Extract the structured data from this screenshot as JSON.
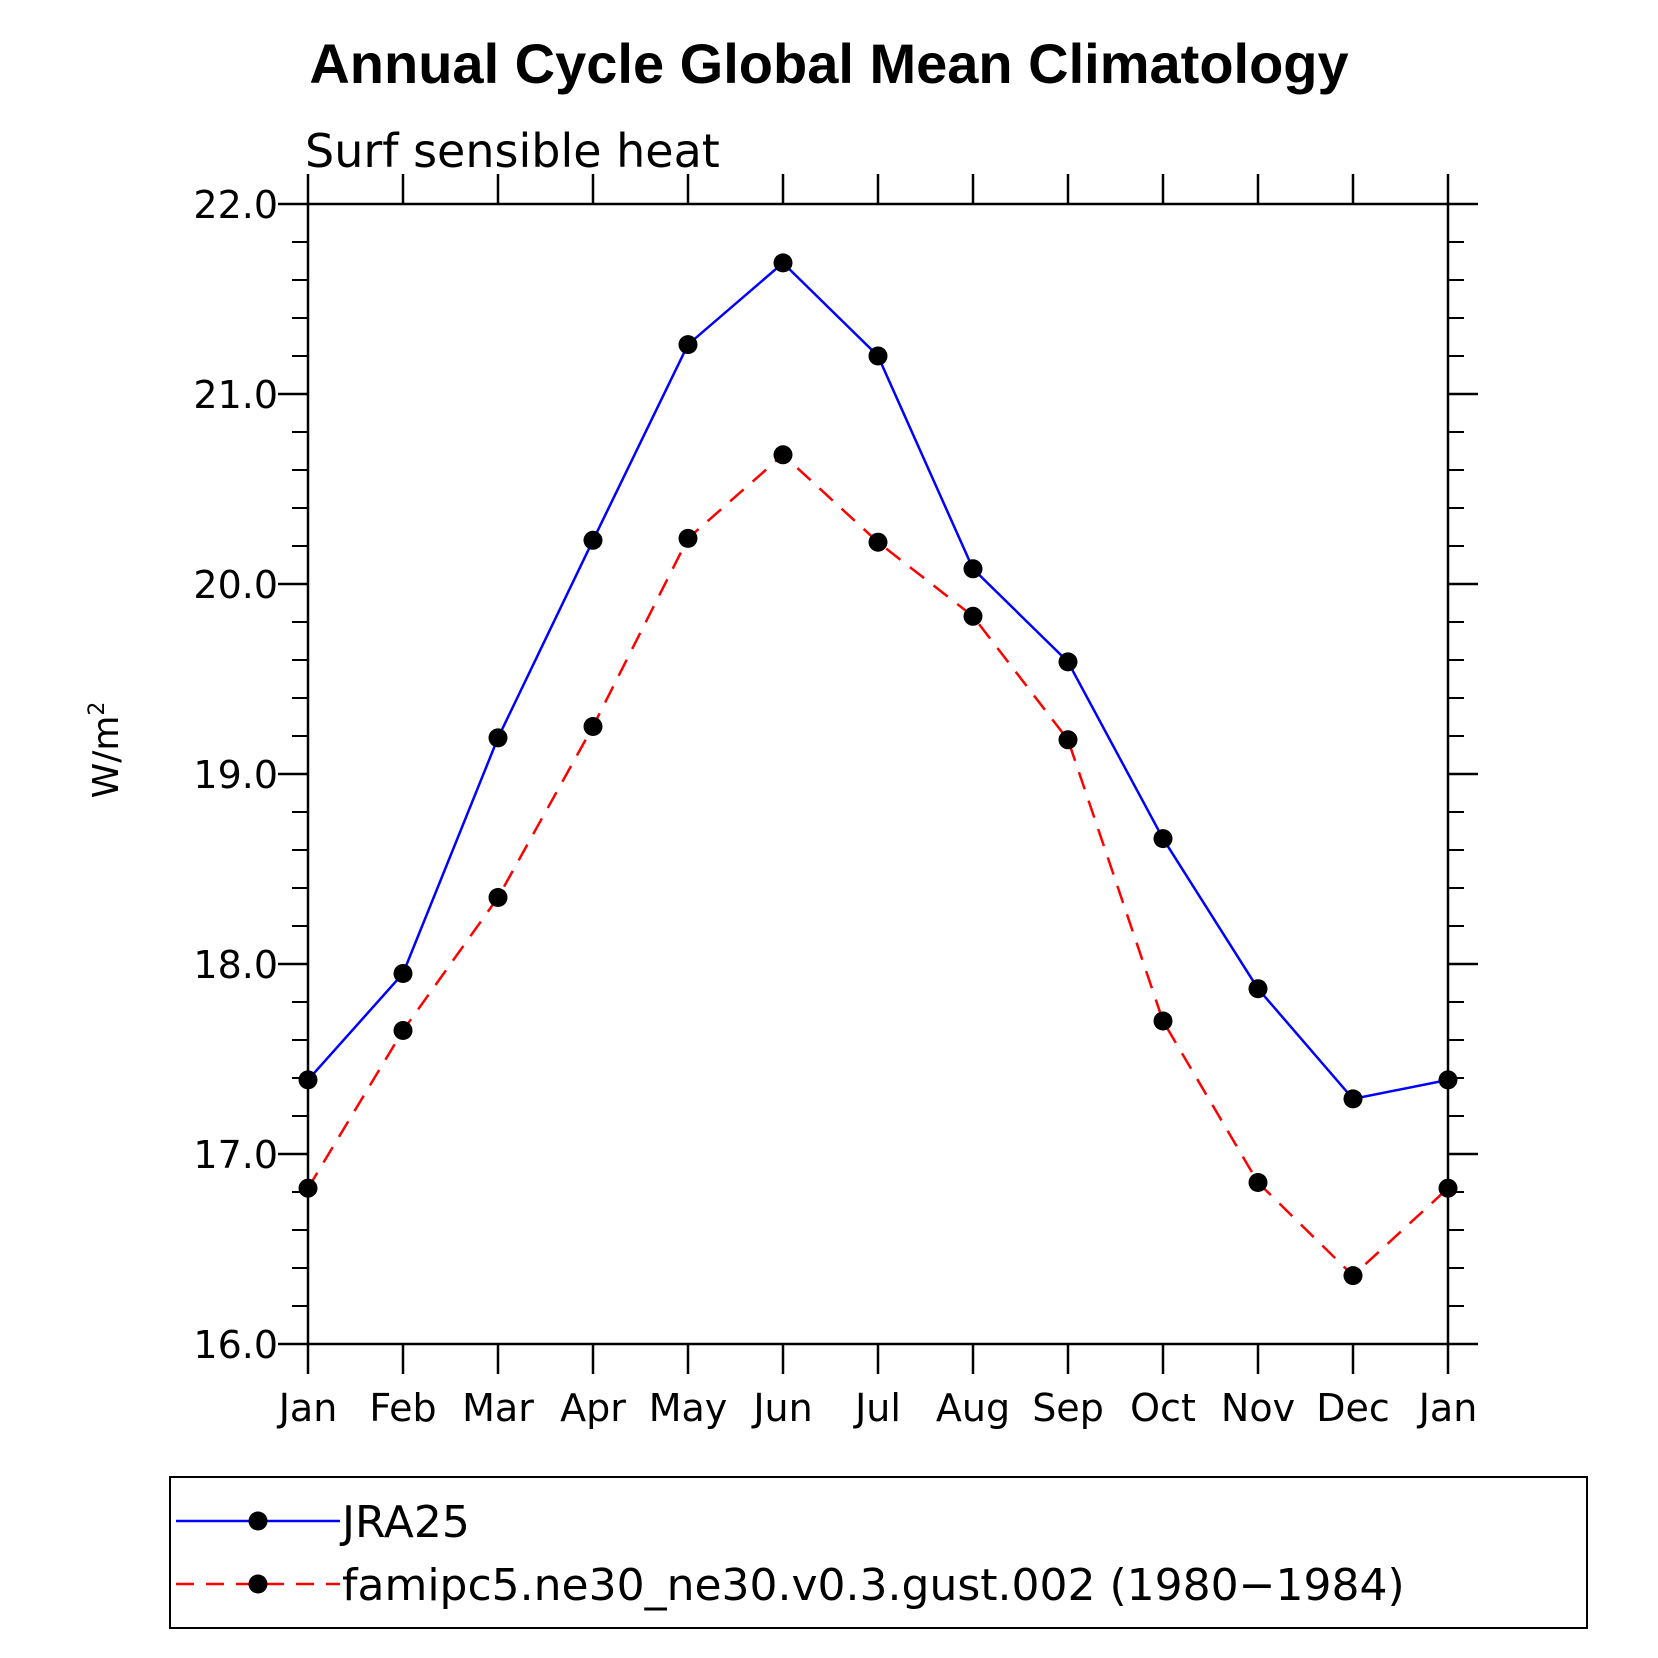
{
  "chart_data": {
    "type": "line",
    "title": "Annual Cycle Global Mean Climatology",
    "subtitle": "Surf sensible heat",
    "ylabel": "W/m",
    "ylabel_superscript": "2",
    "xlabel": "",
    "ylim": [
      16.0,
      22.0
    ],
    "y_ticks": [
      "16.0",
      "17.0",
      "18.0",
      "19.0",
      "20.0",
      "21.0",
      "22.0"
    ],
    "categories": [
      "Jan",
      "Feb",
      "Mar",
      "Apr",
      "May",
      "Jun",
      "Jul",
      "Aug",
      "Sep",
      "Oct",
      "Nov",
      "Dec",
      "Jan"
    ],
    "grid": false,
    "legend_position": "bottom",
    "series": [
      {
        "name": "JRA25",
        "color": "#0000ff",
        "line_style": "solid",
        "values": [
          17.39,
          17.95,
          19.19,
          20.23,
          21.26,
          21.69,
          21.2,
          20.08,
          19.59,
          18.66,
          17.87,
          17.29,
          17.39
        ]
      },
      {
        "name": "famipc5.ne30_ne30.v0.3.gust.002 (1980−1984)",
        "color": "#ff0000",
        "line_style": "dashed",
        "values": [
          16.82,
          17.65,
          18.35,
          19.25,
          20.24,
          20.68,
          20.22,
          19.83,
          19.18,
          17.7,
          16.85,
          16.36,
          16.82
        ]
      }
    ]
  }
}
